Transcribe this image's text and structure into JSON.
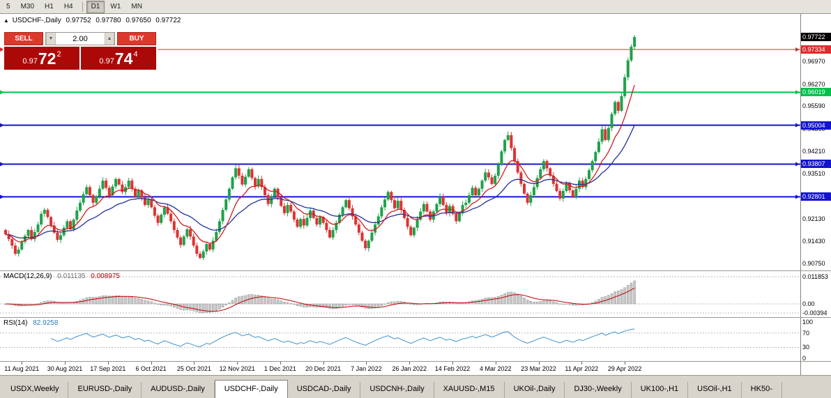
{
  "colors": {
    "candle_up": "#1fa14a",
    "candle_down": "#e03232",
    "ma_fast": "#cf1d1d",
    "ma_slow": "#23309d",
    "macd_hist_fill": "#c9c9c9",
    "macd_hist_stroke": "#8f8f8f",
    "macd_signal": "#c00000",
    "rsi_line": "#4f9bd0",
    "level_red": "#dd2c2c",
    "level_green": "#00c24b",
    "level_blue": "#1414cf",
    "current_label_bg": "#000000"
  },
  "toolbar": {
    "groups": [
      [
        "5",
        "M30",
        "H1",
        "H4"
      ],
      [
        "D1",
        "W1",
        "MN"
      ]
    ],
    "active": "D1"
  },
  "chart": {
    "header": {
      "marker": "▲",
      "symbol": "USDCHF-,Daily",
      "open": "0.97752",
      "high": "0.97780",
      "low": "0.97650",
      "close": "0.97722"
    },
    "price_axis": {
      "range": [
        0.90536,
        0.98429
      ],
      "current": {
        "label": "0.97722",
        "value": 0.97722
      },
      "levels": [
        {
          "label": "0.97334",
          "value": 0.97334,
          "color_key": "level_red",
          "width": 1
        },
        {
          "label": "0.96019",
          "value": 0.96019,
          "color_key": "level_green",
          "width": 2
        },
        {
          "label": "0.95004",
          "value": 0.95004,
          "color_key": "level_blue",
          "width": 2
        },
        {
          "label": "0.93807",
          "value": 0.93807,
          "color_key": "level_blue",
          "width": 2
        },
        {
          "label": "0.92801",
          "value": 0.92801,
          "color_key": "level_blue",
          "width": 2
        }
      ],
      "ticks": [
        {
          "label": "0.96970",
          "value": 0.9697
        },
        {
          "label": "0.96270",
          "value": 0.9627
        },
        {
          "label": "0.95590",
          "value": 0.9559
        },
        {
          "label": "0.94890",
          "value": 0.9489
        },
        {
          "label": "0.94210",
          "value": 0.9421
        },
        {
          "label": "0.93510",
          "value": 0.9351
        },
        {
          "label": "0.92130",
          "value": 0.9213
        },
        {
          "label": "0.91430",
          "value": 0.9143
        },
        {
          "label": "0.90750",
          "value": 0.9075
        }
      ]
    },
    "ma": {
      "fast_period": 10,
      "slow_period": 26
    },
    "series": {
      "first_open": 0.9178,
      "closes": [
        0.9165,
        0.915,
        0.913,
        0.9105,
        0.9118,
        0.9142,
        0.916,
        0.9178,
        0.915,
        0.9172,
        0.9195,
        0.9228,
        0.924,
        0.9218,
        0.9192,
        0.917,
        0.9148,
        0.9162,
        0.9185,
        0.9205,
        0.918,
        0.921,
        0.9238,
        0.9262,
        0.9288,
        0.931,
        0.9285,
        0.9262,
        0.9282,
        0.9305,
        0.933,
        0.9308,
        0.9285,
        0.9312,
        0.9335,
        0.9318,
        0.9295,
        0.931,
        0.933,
        0.9305,
        0.928,
        0.93,
        0.9278,
        0.9255,
        0.9272,
        0.9248,
        0.9222,
        0.92,
        0.9225,
        0.9248,
        0.9228,
        0.9205,
        0.9178,
        0.9155,
        0.9132,
        0.9158,
        0.918,
        0.9158,
        0.913,
        0.9105,
        0.9092,
        0.9112,
        0.9135,
        0.9118,
        0.9145,
        0.9172,
        0.9205,
        0.924,
        0.9272,
        0.9305,
        0.934,
        0.9368,
        0.9345,
        0.9318,
        0.9342,
        0.9365,
        0.9338,
        0.9312,
        0.9335,
        0.931,
        0.9285,
        0.9258,
        0.9282,
        0.9305,
        0.9278,
        0.9252,
        0.923,
        0.9255,
        0.9235,
        0.921,
        0.9188,
        0.9212,
        0.9192,
        0.9215,
        0.9238,
        0.9215,
        0.9195,
        0.9218,
        0.92,
        0.9178,
        0.9155,
        0.9178,
        0.92,
        0.9225,
        0.9248,
        0.927,
        0.9245,
        0.922,
        0.9195,
        0.917,
        0.9145,
        0.9122,
        0.9145,
        0.917,
        0.9195,
        0.922,
        0.9248,
        0.9272,
        0.9295,
        0.927,
        0.9245,
        0.9268,
        0.924,
        0.9215,
        0.9188,
        0.9162,
        0.9185,
        0.921,
        0.9235,
        0.9258,
        0.9235,
        0.921,
        0.9235,
        0.9258,
        0.928,
        0.9255,
        0.923,
        0.9252,
        0.9228,
        0.9205,
        0.923,
        0.9255,
        0.9262,
        0.9285,
        0.9308,
        0.9285,
        0.9305,
        0.933,
        0.9355,
        0.934,
        0.932,
        0.9345,
        0.938,
        0.942,
        0.9455,
        0.947,
        0.943,
        0.939,
        0.9355,
        0.932,
        0.929,
        0.9262,
        0.9285,
        0.931,
        0.9338,
        0.9365,
        0.939,
        0.9368,
        0.9345,
        0.932,
        0.9298,
        0.9275,
        0.9298,
        0.9322,
        0.93,
        0.928,
        0.9305,
        0.933,
        0.931,
        0.9335,
        0.9362,
        0.939,
        0.9418,
        0.945,
        0.9488,
        0.9455,
        0.9492,
        0.9535,
        0.9572,
        0.9545,
        0.959,
        0.9648,
        0.97,
        0.9742,
        0.9772
      ]
    }
  },
  "trade": {
    "sell_label": "SELL",
    "buy_label": "BUY",
    "lot_size": "2.00",
    "spin_up": "▲",
    "spin_down": "▼",
    "sell_price": {
      "big": "0.97",
      "pips": "72",
      "pt": "2"
    },
    "buy_price": {
      "big": "0.97",
      "pips": "74",
      "pt": "4"
    }
  },
  "macd": {
    "name": "MACD(12,26,9)",
    "value_main": "0.011135",
    "value_signal": "0.008975",
    "params": {
      "fast": 12,
      "slow": 26,
      "signal": 9
    },
    "range": [
      -0.00577,
      0.01429
    ],
    "axis": [
      {
        "label": "0.011853",
        "value": 0.011853
      },
      {
        "label": "0.00",
        "value": 0
      },
      {
        "label": "-0.00394",
        "value": -0.00394
      }
    ]
  },
  "rsi": {
    "name": "RSI(14)",
    "value": "82.9258",
    "period": 14,
    "range": [
      -8,
      112
    ],
    "levels": [
      70,
      30
    ],
    "axis": [
      {
        "label": "100",
        "value": 100
      },
      {
        "label": "70",
        "value": 70
      },
      {
        "label": "30",
        "value": 30
      },
      {
        "label": "0",
        "value": 0
      }
    ]
  },
  "date_axis": [
    "11 Aug 2021",
    "30 Aug 2021",
    "17 Sep 2021",
    "6 Oct 2021",
    "25 Oct 2021",
    "12 Nov 2021",
    "1 Dec 2021",
    "20 Dec 2021",
    "7 Jan 2022",
    "26 Jan 2022",
    "14 Feb 2022",
    "4 Mar 2022",
    "23 Mar 2022",
    "11 Apr 2022",
    "29 Apr 2022"
  ],
  "tabs": {
    "items": [
      "USDX,Weekly",
      "EURUSD-,Daily",
      "AUDUSD-,Daily",
      "USDCHF-,Daily",
      "USDCAD-,Daily",
      "USDCNH-,Daily",
      "XAUUSD-,M15",
      "UKOil-,Daily",
      "DJ30-,Weekly",
      "UK100-,H1",
      "USOil-,H1",
      "HK50-"
    ],
    "active": "USDCHF-,Daily"
  }
}
